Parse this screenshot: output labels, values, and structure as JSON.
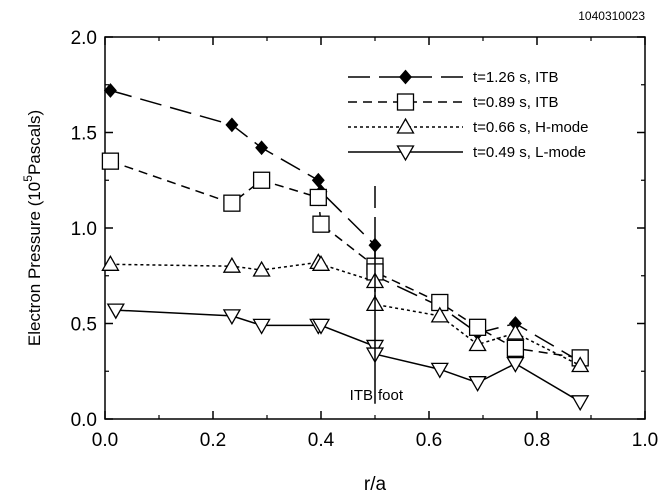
{
  "chart_data": {
    "type": "line",
    "corner_label": "1040310023",
    "xlabel": "r/a",
    "ylabel_prefix": "Electron Pressure (10",
    "ylabel_sup": "5",
    "ylabel_suffix": "Pascals)",
    "xlim": [
      0.0,
      1.0
    ],
    "ylim": [
      0.0,
      2.0
    ],
    "x_ticks": [
      "0.0",
      "0.2",
      "0.4",
      "0.6",
      "0.8",
      "1.0"
    ],
    "y_ticks": [
      "0.0",
      "0.5",
      "1.0",
      "1.5",
      "2.0"
    ],
    "grid": false,
    "legend_position": "top-right",
    "annotation": {
      "left": "ITB",
      "right": "foot",
      "x": 0.5
    },
    "series": [
      {
        "name": "t=1.26 s, ITB",
        "marker": "diamond",
        "marker_fill": "filled",
        "line_style": "long-dash",
        "x": [
          0.01,
          0.235,
          0.29,
          0.395,
          0.4,
          0.5,
          0.5,
          0.62,
          0.69,
          0.76,
          0.88
        ],
        "y": [
          1.72,
          1.54,
          1.42,
          1.25,
          1.19,
          0.91,
          0.75,
          0.59,
          0.45,
          0.5,
          0.3
        ]
      },
      {
        "name": "t=0.89 s, ITB",
        "marker": "square",
        "marker_fill": "open",
        "line_style": "dash",
        "x": [
          0.01,
          0.235,
          0.29,
          0.395,
          0.4,
          0.5,
          0.5,
          0.62,
          0.69,
          0.76,
          0.88
        ],
        "y": [
          1.35,
          1.13,
          1.25,
          1.16,
          1.02,
          0.8,
          0.77,
          0.61,
          0.48,
          0.37,
          0.32
        ]
      },
      {
        "name": "t=0.66 s, H-mode",
        "marker": "triangle-up",
        "marker_fill": "open",
        "line_style": "dot",
        "x": [
          0.01,
          0.235,
          0.29,
          0.395,
          0.4,
          0.5,
          0.5,
          0.62,
          0.69,
          0.76,
          0.88
        ],
        "y": [
          0.81,
          0.8,
          0.78,
          0.82,
          0.81,
          0.72,
          0.6,
          0.54,
          0.39,
          0.45,
          0.28
        ]
      },
      {
        "name": "t=0.49 s, L-mode",
        "marker": "triangle-down",
        "marker_fill": "open",
        "line_style": "solid",
        "x": [
          0.02,
          0.235,
          0.29,
          0.395,
          0.4,
          0.5,
          0.5,
          0.62,
          0.69,
          0.76,
          0.88
        ],
        "y": [
          0.57,
          0.54,
          0.49,
          0.49,
          0.49,
          0.38,
          0.34,
          0.26,
          0.19,
          0.29,
          0.09
        ]
      }
    ]
  }
}
